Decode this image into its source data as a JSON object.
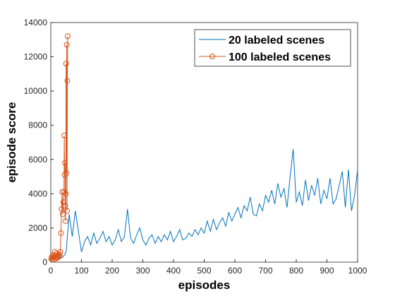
{
  "chart_data": {
    "type": "line",
    "x_label": "episodes",
    "y_label": "episode score",
    "xlim": [
      0,
      1000
    ],
    "xticks": [
      0,
      100,
      200,
      300,
      400,
      500,
      600,
      700,
      800,
      900,
      1000
    ],
    "ylim": [
      0,
      14000
    ],
    "yticks": [
      0,
      2000,
      4000,
      6000,
      8000,
      10000,
      12000,
      14000
    ],
    "grid": false,
    "legend": "upper right",
    "series": [
      {
        "name": "20 labeled scenes",
        "color": "#0072bd",
        "marker": "none",
        "x": [
          0,
          10,
          20,
          30,
          40,
          50,
          60,
          70,
          80,
          90,
          100,
          110,
          120,
          130,
          140,
          150,
          160,
          170,
          180,
          190,
          200,
          210,
          220,
          230,
          240,
          250,
          260,
          270,
          280,
          290,
          300,
          310,
          320,
          330,
          340,
          350,
          360,
          370,
          380,
          390,
          400,
          410,
          420,
          430,
          440,
          450,
          460,
          470,
          480,
          490,
          500,
          510,
          520,
          530,
          540,
          550,
          560,
          570,
          580,
          590,
          600,
          610,
          620,
          630,
          640,
          650,
          660,
          670,
          680,
          690,
          700,
          710,
          720,
          730,
          740,
          750,
          760,
          770,
          780,
          790,
          800,
          810,
          820,
          830,
          840,
          850,
          860,
          870,
          880,
          890,
          900,
          910,
          920,
          930,
          940,
          950,
          960,
          970,
          980,
          990,
          1000
        ],
        "values": [
          200,
          300,
          400,
          200,
          300,
          600,
          2800,
          1500,
          3000,
          1800,
          600,
          1200,
          1500,
          1000,
          1700,
          1100,
          1400,
          1800,
          1200,
          1500,
          1000,
          1300,
          1900,
          1200,
          1500,
          3100,
          1400,
          1100,
          1600,
          2000,
          1300,
          1000,
          1400,
          1600,
          1100,
          1500,
          1200,
          1600,
          1300,
          1800,
          1200,
          1500,
          1900,
          1300,
          1400,
          1700,
          1500,
          1900,
          1600,
          2000,
          1700,
          2400,
          1800,
          2500,
          1900,
          2300,
          2600,
          2100,
          2900,
          2400,
          2800,
          3200,
          2600,
          3300,
          3000,
          3800,
          2800,
          2700,
          3400,
          3000,
          3900,
          3500,
          4200,
          3400,
          4600,
          3800,
          4300,
          3200,
          5000,
          6600,
          3500,
          4100,
          3300,
          4800,
          3600,
          4500,
          3900,
          4900,
          3400,
          4200,
          3700,
          4900,
          3400,
          3700,
          4500,
          5300,
          3200,
          5400,
          3000,
          3900,
          5400
        ]
      },
      {
        "name": "100 labeled scenes",
        "color": "#d95319",
        "marker": "circle",
        "x": [
          1,
          3,
          5,
          7,
          9,
          11,
          13,
          15,
          17,
          19,
          21,
          23,
          25,
          27,
          29,
          31,
          33,
          35,
          37,
          39,
          41,
          43,
          44,
          45,
          46,
          47,
          48,
          49,
          50,
          51,
          52,
          53,
          54,
          55
        ],
        "values": [
          200,
          300,
          150,
          400,
          250,
          350,
          600,
          200,
          300,
          500,
          250,
          400,
          300,
          350,
          450,
          600,
          1700,
          3100,
          4100,
          2800,
          3500,
          4100,
          7400,
          5100,
          5800,
          3300,
          2400,
          4000,
          11600,
          5200,
          12700,
          3000,
          10600,
          13200
        ]
      }
    ]
  }
}
